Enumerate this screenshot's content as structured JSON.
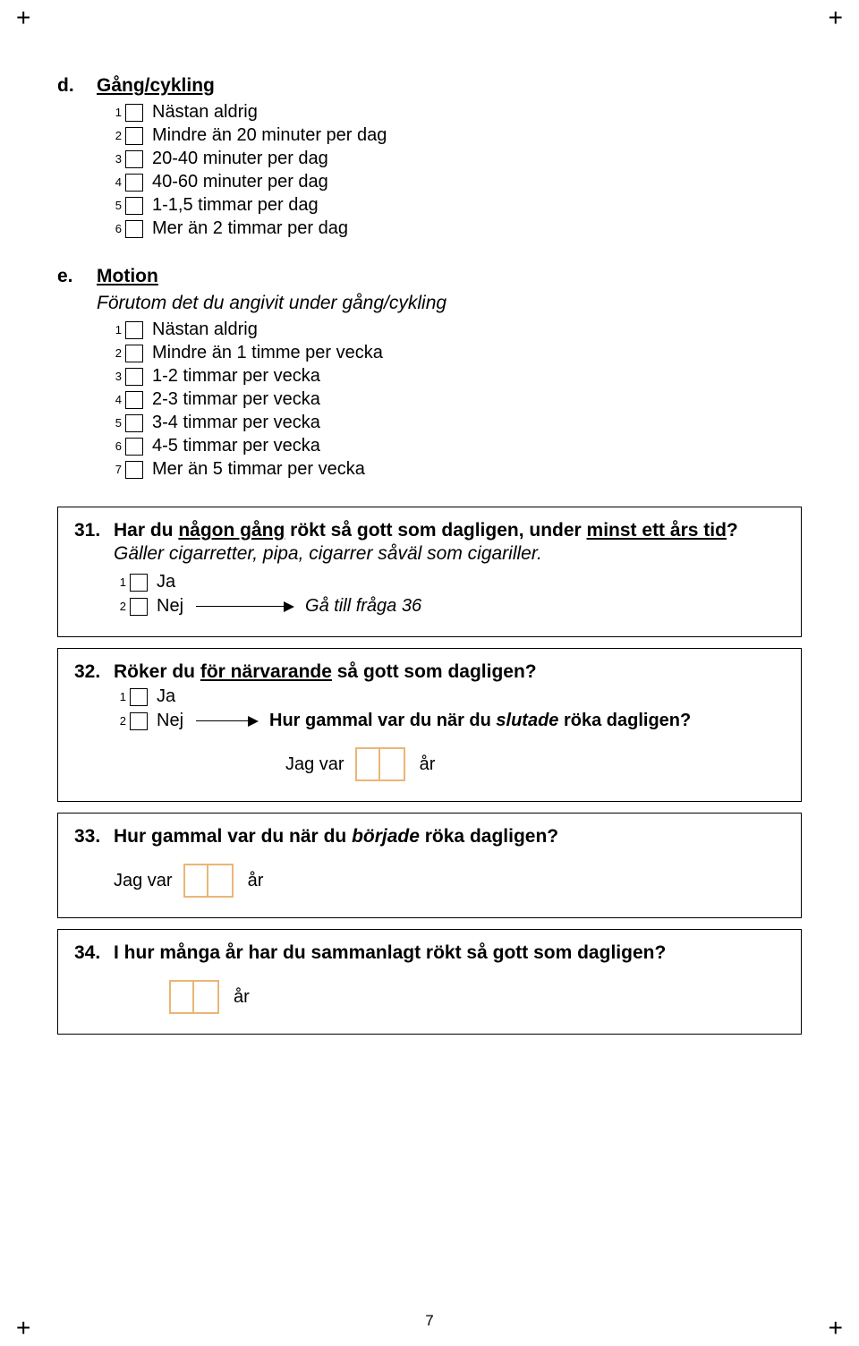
{
  "page": {
    "number": "7",
    "background_color": "#ffffff",
    "text_color": "#000000",
    "accent_box_color": "#eab676",
    "font_family": "Arial",
    "body_fontsize": 20,
    "heading_fontsize": 21,
    "small_num_fontsize": 13
  },
  "section_d": {
    "letter": "d.",
    "title": "Gång/cykling",
    "options": [
      {
        "n": "1",
        "label": "Nästan aldrig"
      },
      {
        "n": "2",
        "label": "Mindre än 20 minuter per dag"
      },
      {
        "n": "3",
        "label": "20-40 minuter per dag"
      },
      {
        "n": "4",
        "label": "40-60 minuter per dag"
      },
      {
        "n": "5",
        "label": "1-1,5 timmar per dag"
      },
      {
        "n": "6",
        "label": "Mer än 2 timmar per dag"
      }
    ]
  },
  "section_e": {
    "letter": "e.",
    "title": "Motion",
    "subtitle": "Förutom det du angivit under gång/cykling",
    "options": [
      {
        "n": "1",
        "label": "Nästan aldrig"
      },
      {
        "n": "2",
        "label": "Mindre än 1 timme per vecka"
      },
      {
        "n": "3",
        "label": "1-2 timmar per vecka"
      },
      {
        "n": "4",
        "label": "2-3 timmar per vecka"
      },
      {
        "n": "5",
        "label": "3-4 timmar per vecka"
      },
      {
        "n": "6",
        "label": "4-5 timmar per vecka"
      },
      {
        "n": "7",
        "label": "Mer än 5 timmar per vecka"
      }
    ]
  },
  "q31": {
    "num": "31.",
    "text_pre": "Har du ",
    "text_ul1": "någon gång",
    "text_mid": " rökt så gott som dagligen, under ",
    "text_ul2": "minst ett års tid",
    "text_post": "?",
    "sub": "Gäller cigarretter, pipa, cigarrer såväl som cigariller.",
    "opt1": {
      "n": "1",
      "label": "Ja"
    },
    "opt2": {
      "n": "2",
      "label": "Nej",
      "goto": "Gå till fråga 36"
    }
  },
  "q32": {
    "num": "32.",
    "text_pre": "Röker du ",
    "text_ul1": "för närvarande",
    "text_post": " så gott som dagligen?",
    "opt1": {
      "n": "1",
      "label": "Ja"
    },
    "opt2": {
      "n": "2",
      "label": "Nej",
      "follow_pre": "Hur gammal var du när du ",
      "follow_ital": "slutade",
      "follow_post": " röka dagligen?"
    },
    "age_before": "Jag var",
    "age_after": "år",
    "digit_cells": 2
  },
  "q33": {
    "num": "33.",
    "text_pre": "Hur gammal var du när du ",
    "text_ital": "började",
    "text_post": " röka dagligen?",
    "age_before": "Jag var",
    "age_after": "år",
    "digit_cells": 2
  },
  "q34": {
    "num": "34.",
    "text": "I hur många år har du sammanlagt rökt så gott som dagligen?",
    "age_after": "år",
    "digit_cells": 2
  }
}
